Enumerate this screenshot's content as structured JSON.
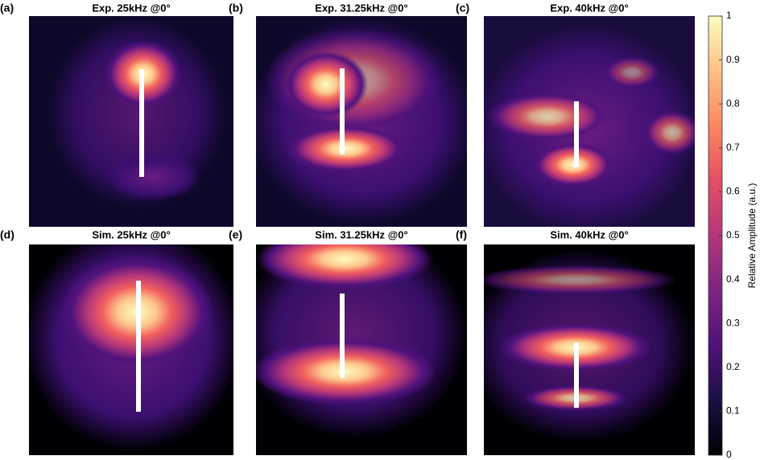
{
  "chart_data": {
    "type": "heatmap",
    "panels": [
      {
        "label": "(a)",
        "title": "Exp. 25kHz @0°"
      },
      {
        "label": "(b)",
        "title": "Exp. 31.25kHz @0°"
      },
      {
        "label": "(c)",
        "title": "Exp. 40kHz @0°"
      },
      {
        "label": "(d)",
        "title": "Sim. 25kHz @0°"
      },
      {
        "label": "(e)",
        "title": "Sim. 31.25kHz @0°"
      },
      {
        "label": "(f)",
        "title": "Sim. 40kHz @0°"
      }
    ],
    "colorbar": {
      "label": "Relative Amplitude (a.u.)",
      "lim": [
        0,
        1
      ],
      "ticks": [
        0,
        0.1,
        0.2,
        0.3,
        0.4,
        0.5,
        0.6,
        0.7,
        0.8,
        0.9,
        1
      ]
    }
  }
}
